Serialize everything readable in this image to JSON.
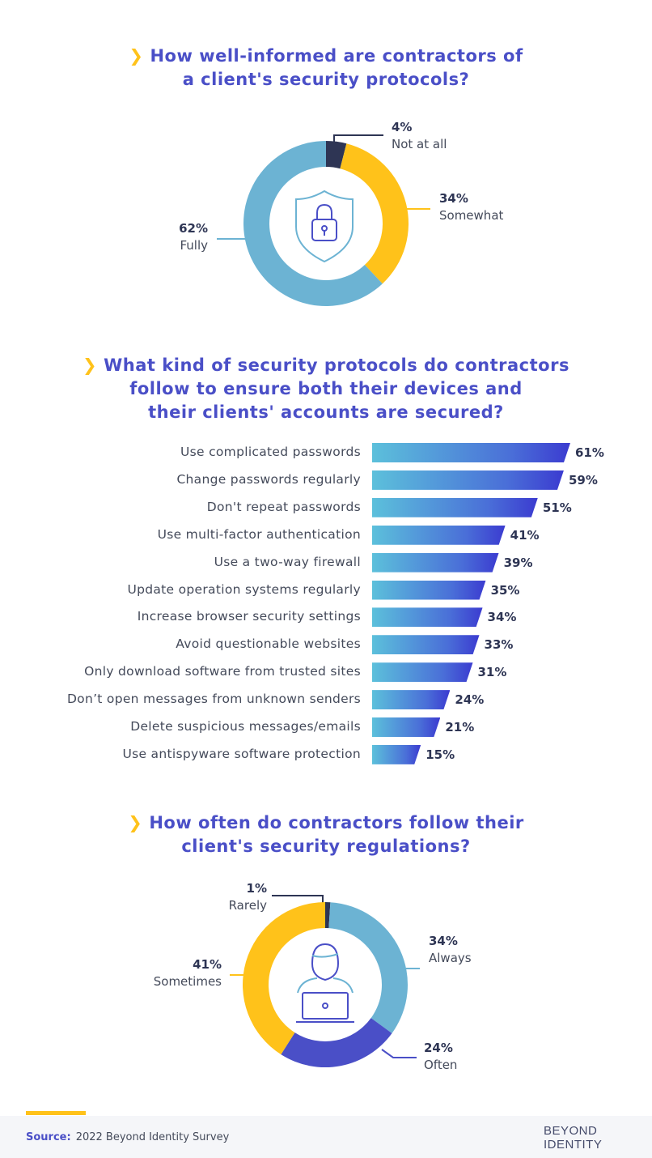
{
  "charts": {
    "q1_title_lines": [
      "How well-informed are contractors of",
      "a client's security protocols?"
    ],
    "q2_title_lines": [
      "What kind of security protocols do contractors",
      "follow to ensure both their devices and",
      "their clients' accounts are secured?"
    ],
    "q3_title_lines": [
      "How often do contractors follow their",
      "client's security regulations?"
    ]
  },
  "chart_data": [
    {
      "type": "pie",
      "title": "How well-informed are contractors of a client's security protocols?",
      "categories": [
        "Not at all",
        "Somewhat",
        "Fully"
      ],
      "values": [
        4,
        34,
        62
      ],
      "value_labels": [
        "4%",
        "34%",
        "62%"
      ],
      "colors": [
        "#2e3554",
        "#ffc21a",
        "#6cb3d3"
      ]
    },
    {
      "type": "bar",
      "orientation": "horizontal",
      "title": "What kind of security protocols do contractors follow to ensure both their devices and their clients' accounts are secured?",
      "categories": [
        "Use complicated passwords",
        "Change passwords regularly",
        "Don't repeat passwords",
        "Use multi-factor authentication",
        "Use a two-way firewall",
        "Update operation systems regularly",
        "Increase browser security settings",
        "Avoid questionable websites",
        "Only download software from trusted sites",
        "Don’t open messages from unknown senders",
        "Delete suspicious messages/emails",
        "Use antispyware software protection"
      ],
      "values": [
        61,
        59,
        51,
        41,
        39,
        35,
        34,
        33,
        31,
        24,
        21,
        15
      ],
      "value_labels": [
        "61%",
        "59%",
        "51%",
        "41%",
        "39%",
        "35%",
        "34%",
        "33%",
        "31%",
        "24%",
        "21%",
        "15%"
      ],
      "xlim": [
        0,
        61
      ]
    },
    {
      "type": "pie",
      "title": "How often do contractors follow their client's security regulations?",
      "categories": [
        "Rarely",
        "Always",
        "Often",
        "Sometimes"
      ],
      "values": [
        1,
        34,
        24,
        41
      ],
      "value_labels": [
        "1%",
        "34%",
        "24%",
        "41%"
      ],
      "colors": [
        "#2e3554",
        "#6cb3d3",
        "#4a4fc7",
        "#ffc21a"
      ]
    }
  ],
  "colors": {
    "title": "#4a4fc7",
    "accent": "#ffc21a"
  },
  "icons": {
    "shield": "shield-lock-icon",
    "user": "user-laptop-icon",
    "chevron": "chevron-right-icon"
  },
  "footer": {
    "source_label": "Source:",
    "source_text": "2022 Beyond Identity Survey",
    "logo_line1": "BEYOND",
    "logo_line2": "IDENTITY"
  }
}
